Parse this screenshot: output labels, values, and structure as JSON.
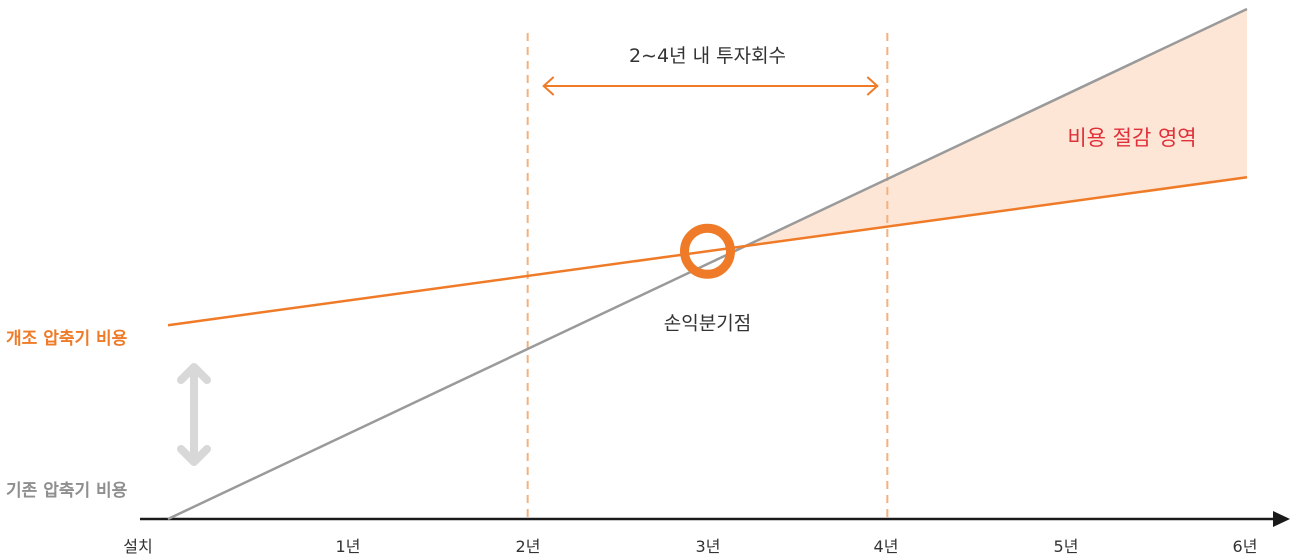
{
  "chart_data": {
    "type": "line",
    "title": "",
    "xlabel": "",
    "ylabel": "",
    "x_categories": [
      "설치",
      "1년",
      "2년",
      "3년",
      "4년",
      "5년",
      "6년"
    ],
    "xlim": [
      0,
      6
    ],
    "series": [
      {
        "name": "개조 압축기 비용",
        "color": "#ef7b28",
        "x": [
          0,
          6
        ],
        "y": [
          1.52,
          2.68
        ]
      },
      {
        "name": "기존 압축기 비용",
        "color": "#9a9a9a",
        "x": [
          0,
          6
        ],
        "y": [
          0,
          4.0
        ]
      }
    ],
    "annotations": {
      "payback_range": {
        "label": "2∼4년 내 투자회수",
        "from": 2,
        "to": 4
      },
      "break_even": {
        "label": "손익분기점",
        "x": 3
      },
      "savings_area": {
        "label": "비용 절감 영역"
      }
    },
    "colors": {
      "new_line": "#ef7b28",
      "old_line": "#9a9a9a",
      "savings_fill": "#fde6d6",
      "savings_text": "#e0303a",
      "arrow_gray": "#d8d8d8",
      "dashed": "#f5b07c"
    }
  }
}
